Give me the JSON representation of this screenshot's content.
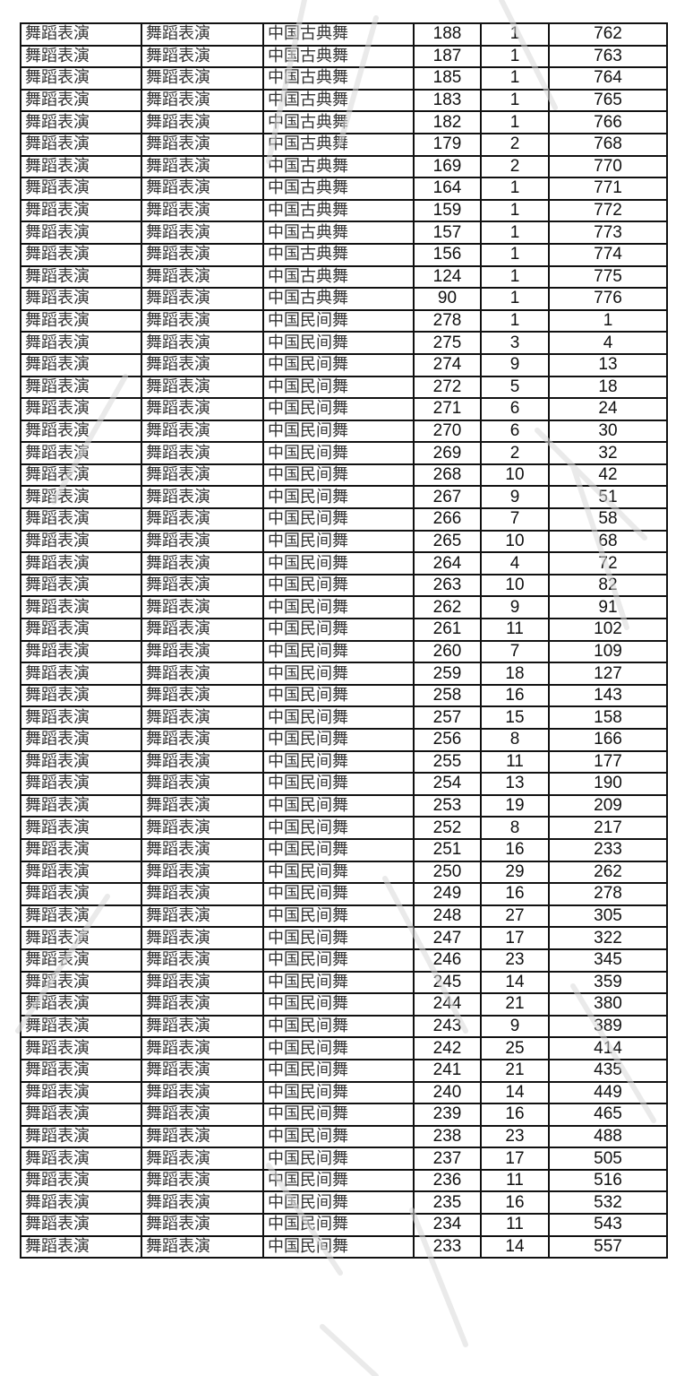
{
  "table": {
    "rows": [
      [
        "舞蹈表演",
        "舞蹈表演",
        "中国古典舞",
        "188",
        "1",
        "762"
      ],
      [
        "舞蹈表演",
        "舞蹈表演",
        "中国古典舞",
        "187",
        "1",
        "763"
      ],
      [
        "舞蹈表演",
        "舞蹈表演",
        "中国古典舞",
        "185",
        "1",
        "764"
      ],
      [
        "舞蹈表演",
        "舞蹈表演",
        "中国古典舞",
        "183",
        "1",
        "765"
      ],
      [
        "舞蹈表演",
        "舞蹈表演",
        "中国古典舞",
        "182",
        "1",
        "766"
      ],
      [
        "舞蹈表演",
        "舞蹈表演",
        "中国古典舞",
        "179",
        "2",
        "768"
      ],
      [
        "舞蹈表演",
        "舞蹈表演",
        "中国古典舞",
        "169",
        "2",
        "770"
      ],
      [
        "舞蹈表演",
        "舞蹈表演",
        "中国古典舞",
        "164",
        "1",
        "771"
      ],
      [
        "舞蹈表演",
        "舞蹈表演",
        "中国古典舞",
        "159",
        "1",
        "772"
      ],
      [
        "舞蹈表演",
        "舞蹈表演",
        "中国古典舞",
        "157",
        "1",
        "773"
      ],
      [
        "舞蹈表演",
        "舞蹈表演",
        "中国古典舞",
        "156",
        "1",
        "774"
      ],
      [
        "舞蹈表演",
        "舞蹈表演",
        "中国古典舞",
        "124",
        "1",
        "775"
      ],
      [
        "舞蹈表演",
        "舞蹈表演",
        "中国古典舞",
        "90",
        "1",
        "776"
      ],
      [
        "舞蹈表演",
        "舞蹈表演",
        "中国民间舞",
        "278",
        "1",
        "1"
      ],
      [
        "舞蹈表演",
        "舞蹈表演",
        "中国民间舞",
        "275",
        "3",
        "4"
      ],
      [
        "舞蹈表演",
        "舞蹈表演",
        "中国民间舞",
        "274",
        "9",
        "13"
      ],
      [
        "舞蹈表演",
        "舞蹈表演",
        "中国民间舞",
        "272",
        "5",
        "18"
      ],
      [
        "舞蹈表演",
        "舞蹈表演",
        "中国民间舞",
        "271",
        "6",
        "24"
      ],
      [
        "舞蹈表演",
        "舞蹈表演",
        "中国民间舞",
        "270",
        "6",
        "30"
      ],
      [
        "舞蹈表演",
        "舞蹈表演",
        "中国民间舞",
        "269",
        "2",
        "32"
      ],
      [
        "舞蹈表演",
        "舞蹈表演",
        "中国民间舞",
        "268",
        "10",
        "42"
      ],
      [
        "舞蹈表演",
        "舞蹈表演",
        "中国民间舞",
        "267",
        "9",
        "51"
      ],
      [
        "舞蹈表演",
        "舞蹈表演",
        "中国民间舞",
        "266",
        "7",
        "58"
      ],
      [
        "舞蹈表演",
        "舞蹈表演",
        "中国民间舞",
        "265",
        "10",
        "68"
      ],
      [
        "舞蹈表演",
        "舞蹈表演",
        "中国民间舞",
        "264",
        "4",
        "72"
      ],
      [
        "舞蹈表演",
        "舞蹈表演",
        "中国民间舞",
        "263",
        "10",
        "82"
      ],
      [
        "舞蹈表演",
        "舞蹈表演",
        "中国民间舞",
        "262",
        "9",
        "91"
      ],
      [
        "舞蹈表演",
        "舞蹈表演",
        "中国民间舞",
        "261",
        "11",
        "102"
      ],
      [
        "舞蹈表演",
        "舞蹈表演",
        "中国民间舞",
        "260",
        "7",
        "109"
      ],
      [
        "舞蹈表演",
        "舞蹈表演",
        "中国民间舞",
        "259",
        "18",
        "127"
      ],
      [
        "舞蹈表演",
        "舞蹈表演",
        "中国民间舞",
        "258",
        "16",
        "143"
      ],
      [
        "舞蹈表演",
        "舞蹈表演",
        "中国民间舞",
        "257",
        "15",
        "158"
      ],
      [
        "舞蹈表演",
        "舞蹈表演",
        "中国民间舞",
        "256",
        "8",
        "166"
      ],
      [
        "舞蹈表演",
        "舞蹈表演",
        "中国民间舞",
        "255",
        "11",
        "177"
      ],
      [
        "舞蹈表演",
        "舞蹈表演",
        "中国民间舞",
        "254",
        "13",
        "190"
      ],
      [
        "舞蹈表演",
        "舞蹈表演",
        "中国民间舞",
        "253",
        "19",
        "209"
      ],
      [
        "舞蹈表演",
        "舞蹈表演",
        "中国民间舞",
        "252",
        "8",
        "217"
      ],
      [
        "舞蹈表演",
        "舞蹈表演",
        "中国民间舞",
        "251",
        "16",
        "233"
      ],
      [
        "舞蹈表演",
        "舞蹈表演",
        "中国民间舞",
        "250",
        "29",
        "262"
      ],
      [
        "舞蹈表演",
        "舞蹈表演",
        "中国民间舞",
        "249",
        "16",
        "278"
      ],
      [
        "舞蹈表演",
        "舞蹈表演",
        "中国民间舞",
        "248",
        "27",
        "305"
      ],
      [
        "舞蹈表演",
        "舞蹈表演",
        "中国民间舞",
        "247",
        "17",
        "322"
      ],
      [
        "舞蹈表演",
        "舞蹈表演",
        "中国民间舞",
        "246",
        "23",
        "345"
      ],
      [
        "舞蹈表演",
        "舞蹈表演",
        "中国民间舞",
        "245",
        "14",
        "359"
      ],
      [
        "舞蹈表演",
        "舞蹈表演",
        "中国民间舞",
        "244",
        "21",
        "380"
      ],
      [
        "舞蹈表演",
        "舞蹈表演",
        "中国民间舞",
        "243",
        "9",
        "389"
      ],
      [
        "舞蹈表演",
        "舞蹈表演",
        "中国民间舞",
        "242",
        "25",
        "414"
      ],
      [
        "舞蹈表演",
        "舞蹈表演",
        "中国民间舞",
        "241",
        "21",
        "435"
      ],
      [
        "舞蹈表演",
        "舞蹈表演",
        "中国民间舞",
        "240",
        "14",
        "449"
      ],
      [
        "舞蹈表演",
        "舞蹈表演",
        "中国民间舞",
        "239",
        "16",
        "465"
      ],
      [
        "舞蹈表演",
        "舞蹈表演",
        "中国民间舞",
        "238",
        "23",
        "488"
      ],
      [
        "舞蹈表演",
        "舞蹈表演",
        "中国民间舞",
        "237",
        "17",
        "505"
      ],
      [
        "舞蹈表演",
        "舞蹈表演",
        "中国民间舞",
        "236",
        "11",
        "516"
      ],
      [
        "舞蹈表演",
        "舞蹈表演",
        "中国民间舞",
        "235",
        "16",
        "532"
      ],
      [
        "舞蹈表演",
        "舞蹈表演",
        "中国民间舞",
        "234",
        "11",
        "543"
      ],
      [
        "舞蹈表演",
        "舞蹈表演",
        "中国民间舞",
        "233",
        "14",
        "557"
      ]
    ]
  },
  "colors": {
    "border": "#111111",
    "text": "#111111",
    "watermark": "#d8d8d8"
  }
}
